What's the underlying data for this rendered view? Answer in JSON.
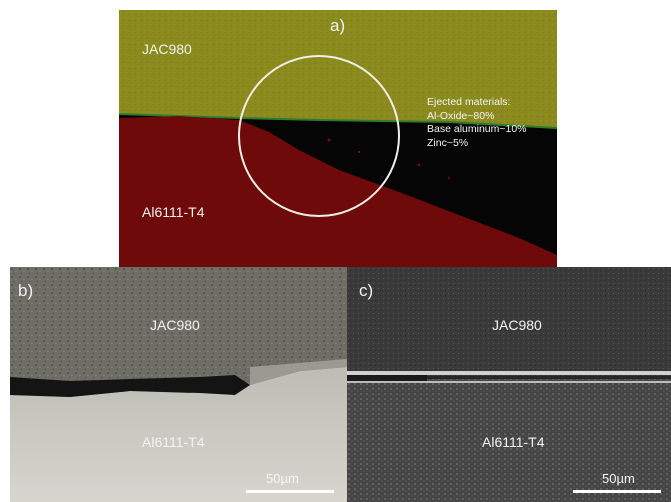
{
  "panel_a": {
    "letter": "a)",
    "top_material": "JAC980",
    "bottom_material": "Al6111-T4",
    "annotation": [
      "Ejected materials:",
      "Al-Oxide~80%",
      "Base aluminum~10%",
      "Zinc~5%"
    ],
    "colors": {
      "top": "#8a8a1e",
      "bottom": "#6e0a0a",
      "void": "#050505",
      "circle": "#f0f0e6"
    }
  },
  "panel_b": {
    "letter": "b)",
    "top_material": "JAC980",
    "bottom_material": "Al6111-T4",
    "scale_label": "50µm"
  },
  "panel_c": {
    "letter": "c)",
    "top_material": "JAC980",
    "bottom_material": "Al6111-T4",
    "scale_label": "50µm"
  }
}
